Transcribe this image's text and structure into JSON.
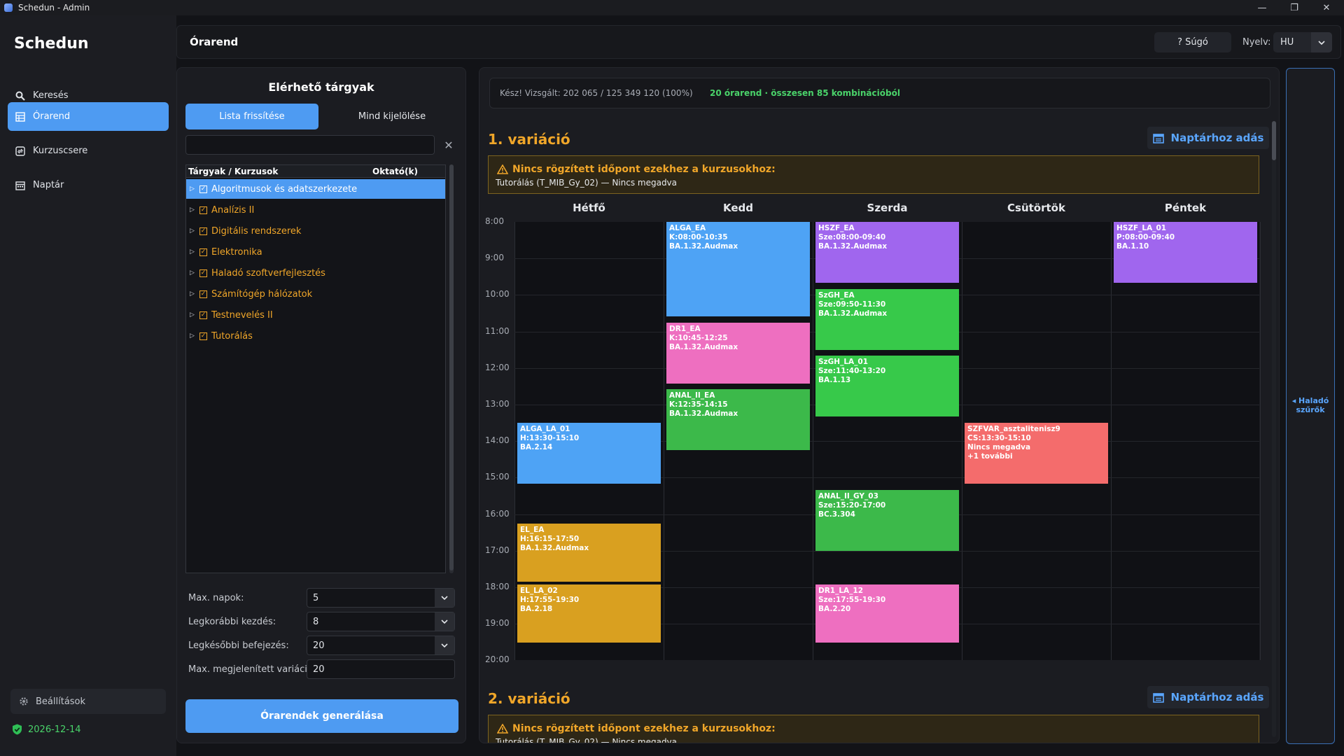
{
  "window": {
    "title": "Schedun - Admin",
    "minimize_icon": "minimize-icon",
    "restore_icon": "restore-icon",
    "close_icon": "close-icon"
  },
  "sidebar": {
    "brand": "Schedun",
    "items": [
      {
        "label": "Keresés",
        "icon": "search-icon",
        "active": false
      },
      {
        "label": "Órarend",
        "icon": "table-icon",
        "active": true
      },
      {
        "label": "Kurzuscsere",
        "icon": "swap-icon",
        "active": false
      },
      {
        "label": "Naptár",
        "icon": "calendar-icon",
        "active": false
      }
    ],
    "settings_label": "Beállítások",
    "license_date": "2026-12-14"
  },
  "header": {
    "title": "Órarend",
    "help_label": "? Súgó",
    "language_label": "Nyelv:",
    "language_value": "HU"
  },
  "left_panel": {
    "title": "Elérhető tárgyak",
    "refresh_label": "Lista frissítése",
    "select_all_label": "Mind kijelölése",
    "search_value": "",
    "tree_header": {
      "col1": "Tárgyak / Kurzusok",
      "col2": "Oktató(k)"
    },
    "subjects": [
      {
        "name": "Algoritmusok és adatszerkezete",
        "selected": true
      },
      {
        "name": "Analízis II",
        "selected": false
      },
      {
        "name": "Digitális rendszerek",
        "selected": false
      },
      {
        "name": "Elektronika",
        "selected": false
      },
      {
        "name": "Haladó szoftverfejlesztés",
        "selected": false
      },
      {
        "name": "Számítógép hálózatok",
        "selected": false
      },
      {
        "name": "Testnevelés II",
        "selected": false
      },
      {
        "name": "Tutorálás",
        "selected": false
      }
    ],
    "form": {
      "max_days_label": "Max. napok:",
      "max_days_value": "5",
      "earliest_label": "Legkorábbi kezdés:",
      "earliest_value": "8",
      "latest_label": "Legkésőbbi befejezés:",
      "latest_value": "20",
      "max_variations_label": "Max. megjelenített variáció:",
      "max_variations_value": "20"
    },
    "generate_label": "Órarendek generálása"
  },
  "results": {
    "status_text": "Kész! Vizsgált: 202 065 / 125 349 120 (100%)",
    "summary_text": "20 órarend · összesen 85 kombinációból",
    "add_to_calendar_label": "Naptárhoz adás",
    "warning_title": "Nincs rögzített időpont ezekhez a kurzusokhoz:",
    "warning_detail": "Tutorálás (T_MIB_Gy_02) — Nincs megadva",
    "variations": [
      {
        "title": "1. variáció"
      },
      {
        "title": "2. variáció"
      }
    ],
    "days": [
      "Hétfő",
      "Kedd",
      "Szerda",
      "Csütörtök",
      "Péntek"
    ],
    "hours": [
      "8:00",
      "9:00",
      "10:00",
      "11:00",
      "12:00",
      "13:00",
      "14:00",
      "15:00",
      "16:00",
      "17:00",
      "18:00",
      "19:00",
      "20:00"
    ],
    "events": [
      {
        "day": 0,
        "start": 13.5,
        "end": 15.1667,
        "color": "#4ea3f5",
        "lines": [
          "ALGA_LA_01",
          "H:13:30-15:10",
          "BA.2.14"
        ]
      },
      {
        "day": 0,
        "start": 16.25,
        "end": 17.8333,
        "color": "#d9a020",
        "lines": [
          "EL_EA",
          "H:16:15-17:50",
          "BA.1.32.Audmax"
        ]
      },
      {
        "day": 0,
        "start": 17.9167,
        "end": 19.5,
        "color": "#d9a020",
        "lines": [
          "EL_LA_02",
          "H:17:55-19:30",
          "BA.2.18"
        ]
      },
      {
        "day": 1,
        "start": 8.0,
        "end": 10.5833,
        "color": "#4ea3f5",
        "lines": [
          "ALGA_EA",
          "K:08:00-10:35",
          "BA.1.32.Audmax"
        ]
      },
      {
        "day": 1,
        "start": 10.75,
        "end": 12.4167,
        "color": "#ee6fc0",
        "lines": [
          "DR1_EA",
          "K:10:45-12:25",
          "BA.1.32.Audmax"
        ]
      },
      {
        "day": 1,
        "start": 12.5833,
        "end": 14.25,
        "color": "#3cb94a",
        "lines": [
          "ANAL_II_EA",
          "K:12:35-14:15",
          "BA.1.32.Audmax"
        ]
      },
      {
        "day": 2,
        "start": 8.0,
        "end": 9.6667,
        "color": "#a066ee",
        "lines": [
          "HSZF_EA",
          "Sze:08:00-09:40",
          "BA.1.32.Audmax"
        ]
      },
      {
        "day": 2,
        "start": 9.8333,
        "end": 11.5,
        "color": "#37c94a",
        "lines": [
          "SzGH_EA",
          "Sze:09:50-11:30",
          "BA.1.32.Audmax"
        ]
      },
      {
        "day": 2,
        "start": 11.6667,
        "end": 13.3333,
        "color": "#37c94a",
        "lines": [
          "SzGH_LA_01",
          "Sze:11:40-13:20",
          "BA.1.13"
        ]
      },
      {
        "day": 2,
        "start": 15.3333,
        "end": 17.0,
        "color": "#3cb94a",
        "lines": [
          "ANAL_II_GY_03",
          "Sze:15:20-17:00",
          "BC.3.304"
        ]
      },
      {
        "day": 2,
        "start": 17.9167,
        "end": 19.5,
        "color": "#ee6fc0",
        "lines": [
          "DR1_LA_12",
          "Sze:17:55-19:30",
          "BA.2.20"
        ]
      },
      {
        "day": 3,
        "start": 13.5,
        "end": 15.1667,
        "color": "#f46c6c",
        "lines": [
          "SZFVAR_asztalitenisz9",
          "CS:13:30-15:10",
          "Nincs megadva",
          "+1 további"
        ]
      },
      {
        "day": 4,
        "start": 8.0,
        "end": 9.6667,
        "color": "#a066ee",
        "lines": [
          "HSZF_LA_01",
          "P:08:00-09:40",
          "BA.1.10"
        ]
      }
    ]
  },
  "right_panel": {
    "label_line1": "◂ Haladó",
    "label_line2": "szűrők"
  },
  "colors": {
    "accent": "#4e9bf2",
    "warning": "#f0a629",
    "success": "#4ad36a",
    "background": "#121317"
  }
}
